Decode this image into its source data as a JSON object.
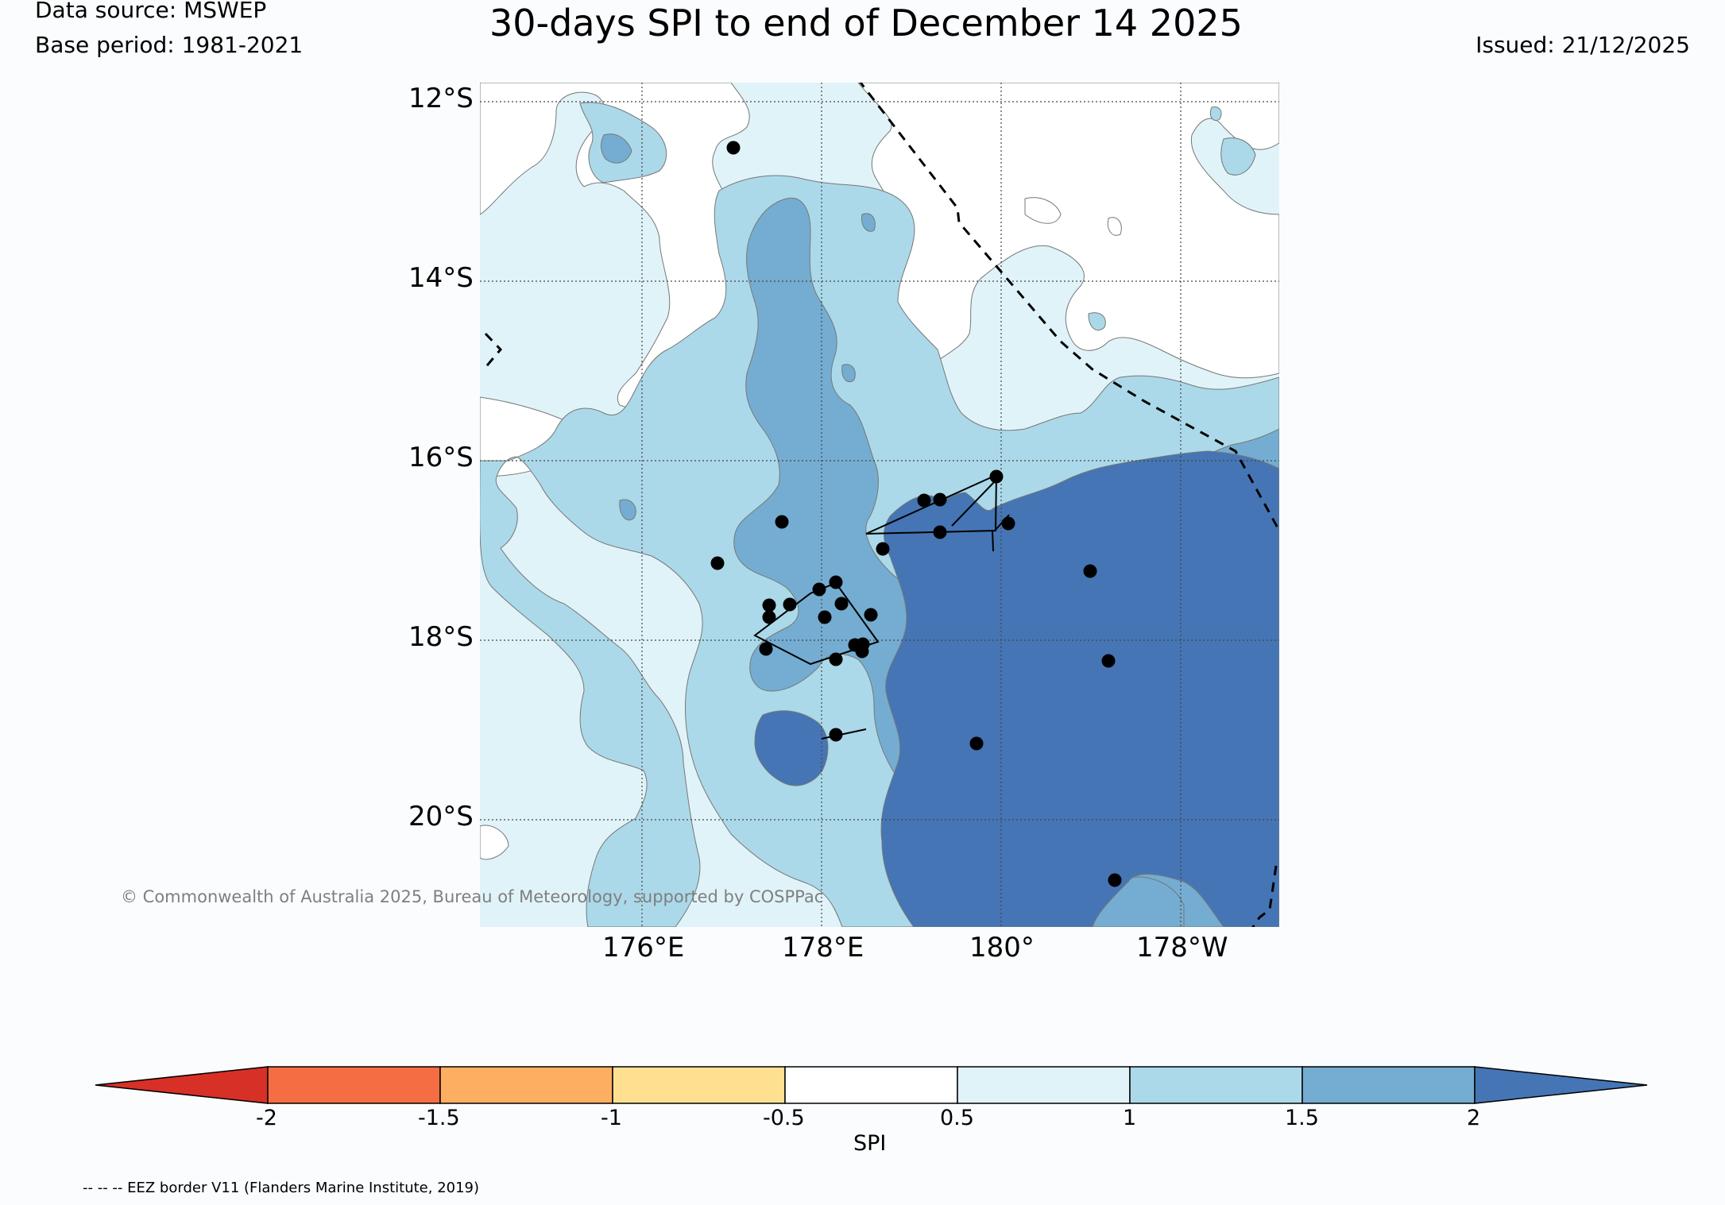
{
  "header": {
    "data_source": "Data source: MSWEP",
    "base_period": "Base period: 1981-2021",
    "title": "30-days SPI to end of December 14 2025",
    "issued": "Issued: 21/12/2025"
  },
  "map": {
    "lat_labels": [
      "12°S",
      "14°S",
      "16°S",
      "18°S",
      "20°S"
    ],
    "lon_labels": [
      "176°E",
      "178°E",
      "180°",
      "178°W"
    ],
    "copyright": "© Commonwealth of Australia 2025, Bureau of Meteorology, supported by COSPPac",
    "colors": {
      "spi_above_2": "#4575b4",
      "spi_1_5_to_2": "#74add1",
      "spi_1_to_1_5": "#abd9e9",
      "spi_0_5_to_1": "#e0f3f8",
      "spi_neutral": "#ffffff",
      "spi_minus_1_to_minus_0_5": "#fee090",
      "spi_minus_1_5_to_minus_1": "#fdae61",
      "spi_minus_2_to_minus_1_5": "#f46d43",
      "spi_below_minus_2": "#d73027"
    }
  },
  "colorbar": {
    "label": "SPI",
    "ticks": [
      "-2",
      "-1.5",
      "-1",
      "-0.5",
      "0.5",
      "1",
      "1.5",
      "2"
    ],
    "bins": [
      {
        "range": "below -2",
        "color": "#d73027"
      },
      {
        "range": "-2 to -1.5",
        "color": "#f46d43"
      },
      {
        "range": "-1.5 to -1",
        "color": "#fdae61"
      },
      {
        "range": "-1 to -0.5",
        "color": "#fee090"
      },
      {
        "range": "-0.5 to 0.5",
        "color": "#ffffff"
      },
      {
        "range": "0.5 to 1",
        "color": "#e0f3f8"
      },
      {
        "range": "1 to 1.5",
        "color": "#abd9e9"
      },
      {
        "range": "1.5 to 2",
        "color": "#74add1"
      },
      {
        "range": "above 2",
        "color": "#4575b4"
      }
    ]
  },
  "footnote": "-- -- -- EEZ border V11 (Flanders Marine Institute, 2019)"
}
